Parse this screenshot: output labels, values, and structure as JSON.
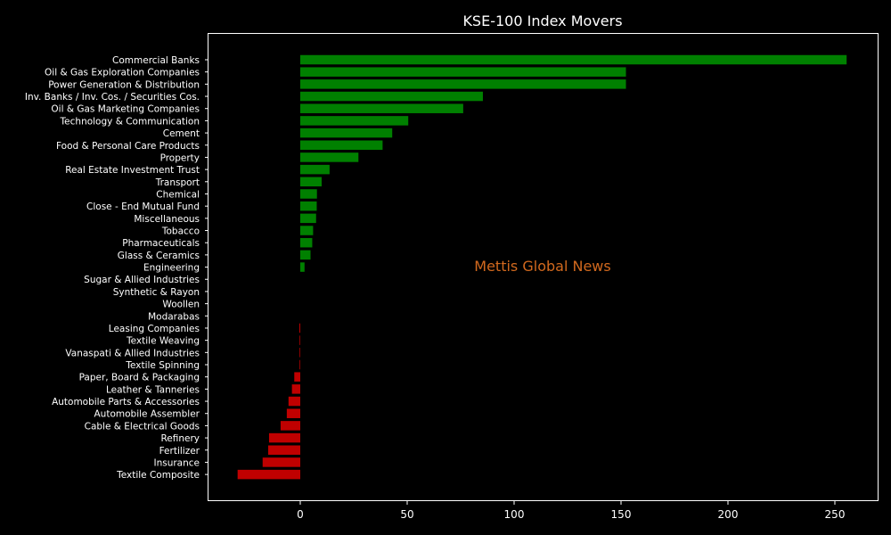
{
  "chart_data": {
    "type": "bar",
    "orientation": "horizontal",
    "title": "KSE-100 Index Movers",
    "xlabel": "",
    "ylabel": "",
    "xlim": [
      -43,
      270
    ],
    "xticks": [
      0,
      50,
      100,
      150,
      200,
      250
    ],
    "grid": false,
    "annotation": "Mettis Global News",
    "colors": {
      "background": "#000000",
      "axis": "#ffffff",
      "text": "#ffffff",
      "positive": "#008000",
      "negative": "#c00000",
      "annotation": "#d2691e"
    },
    "categories": [
      "Commercial Banks",
      "Oil & Gas Exploration Companies",
      "Power Generation & Distribution",
      "Inv. Banks / Inv. Cos. / Securities Cos.",
      "Oil & Gas Marketing Companies",
      "Technology & Communication",
      "Cement",
      "Food & Personal Care Products",
      "Property",
      "Real Estate Investment Trust",
      "Transport",
      "Chemical",
      "Close - End Mutual Fund",
      "Miscellaneous",
      "Tobacco",
      "Pharmaceuticals",
      "Glass & Ceramics",
      "Engineering",
      "Sugar & Allied Industries",
      "Synthetic & Rayon",
      "Woollen",
      "Modarabas",
      "Leasing Companies",
      "Textile Weaving",
      "Vanaspati & Allied Industries",
      "Textile Spinning",
      "Paper, Board & Packaging",
      "Leather & Tanneries",
      "Automobile Parts & Accessories",
      "Automobile Assembler",
      "Cable & Electrical Goods",
      "Refinery",
      "Fertilizer",
      "Insurance",
      "Textile Composite"
    ],
    "values": [
      255.5,
      152.3,
      152.3,
      85.4,
      76.2,
      50.5,
      43.0,
      38.5,
      27.2,
      13.7,
      10.0,
      7.8,
      7.7,
      7.4,
      6.0,
      5.6,
      4.8,
      2.0,
      0,
      0,
      0,
      0,
      -0.4,
      -0.3,
      -0.3,
      -0.3,
      -2.8,
      -3.9,
      -5.5,
      -6.3,
      -9.2,
      -14.6,
      -15.0,
      -17.6,
      -29.3
    ]
  }
}
